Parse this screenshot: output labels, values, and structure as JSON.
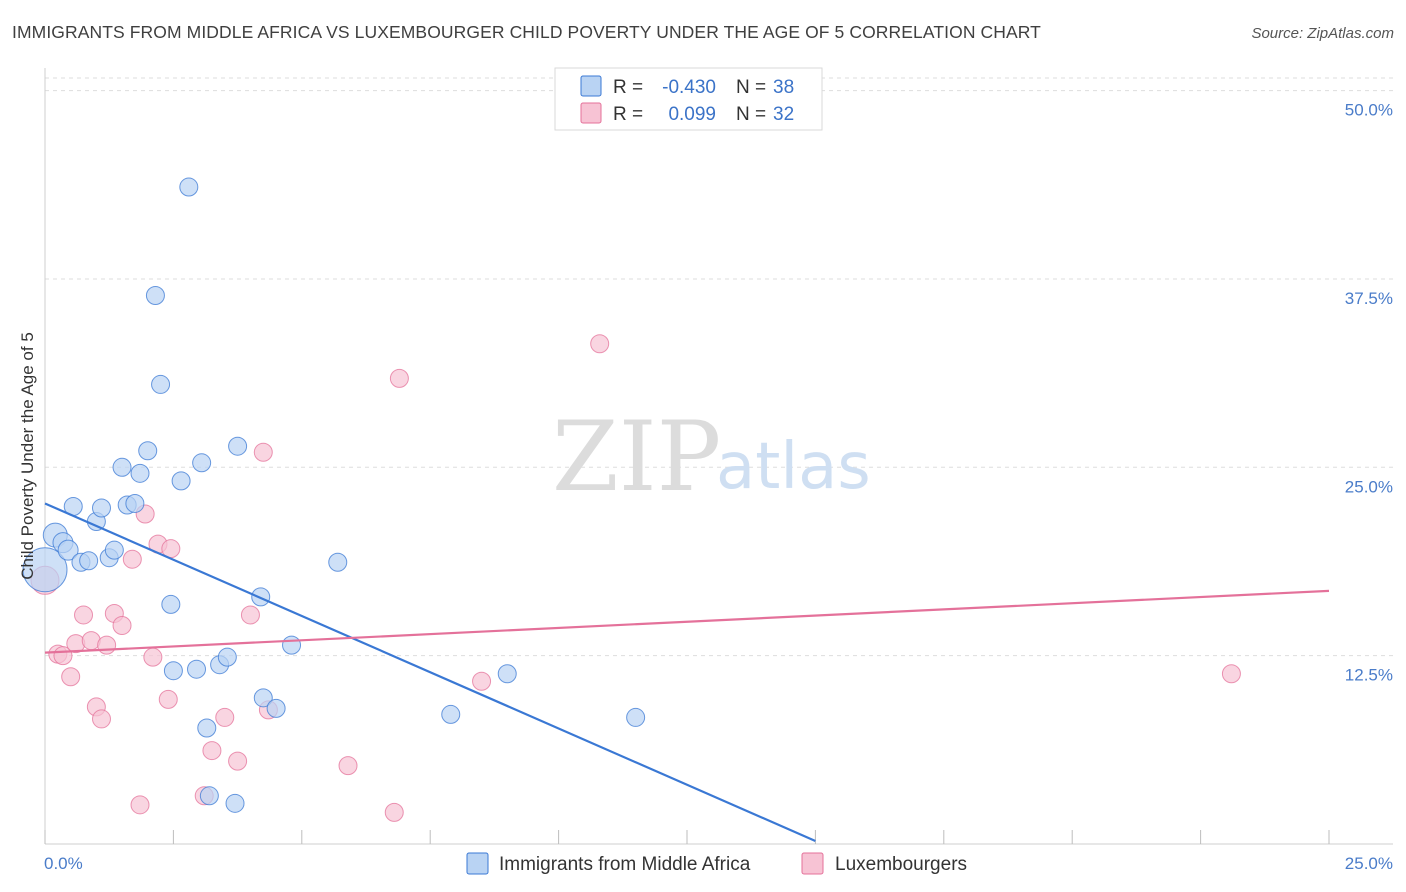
{
  "header": {
    "title": "IMMIGRANTS FROM MIDDLE AFRICA VS LUXEMBOURGER CHILD POVERTY UNDER THE AGE OF 5 CORRELATION CHART",
    "source": "Source: ZipAtlas.com"
  },
  "watermark": {
    "zip": "ZIP",
    "atlas": "atlas"
  },
  "legend_top": {
    "rows": [
      {
        "r_label": "R =",
        "r_value": "-0.430",
        "n_label": "N =",
        "n_value": "38"
      },
      {
        "r_label": "R =",
        "r_value": "0.099",
        "n_label": "N =",
        "n_value": "32"
      }
    ]
  },
  "chart_data": {
    "type": "scatter",
    "title": "IMMIGRANTS FROM MIDDLE AFRICA VS LUXEMBOURGER CHILD POVERTY UNDER THE AGE OF 5 CORRELATION CHART",
    "xlabel": "",
    "ylabel": "Child Poverty Under the Age of 5",
    "xlim": [
      0,
      25
    ],
    "ylim": [
      0,
      51.5
    ],
    "x_tick_labels": [
      "0.0%",
      "25.0%"
    ],
    "y_ticks": [
      12.5,
      25.0,
      37.5,
      50.0
    ],
    "y_tick_labels": [
      "12.5%",
      "25.0%",
      "37.5%",
      "50.0%"
    ],
    "grid": true,
    "colors": {
      "blue": "#3a78d4",
      "blue_fill": "#b9d3f3",
      "pink": "#e4719a",
      "pink_fill": "#f7c3d4"
    },
    "series": [
      {
        "name": "Immigrants from Middle Africa",
        "color": "#3a78d4",
        "r": -0.43,
        "n": 38,
        "points": [
          [
            0.0,
            18.2,
            22
          ],
          [
            0.2,
            20.5,
            12
          ],
          [
            0.35,
            20.0,
            10
          ],
          [
            0.45,
            19.5,
            10
          ],
          [
            0.55,
            22.4,
            9
          ],
          [
            0.7,
            18.7,
            9
          ],
          [
            0.85,
            18.8,
            9
          ],
          [
            1.0,
            21.4,
            9
          ],
          [
            1.1,
            22.3,
            9
          ],
          [
            1.25,
            19.0,
            9
          ],
          [
            1.35,
            19.5,
            9
          ],
          [
            1.5,
            25.0,
            9
          ],
          [
            1.6,
            22.5,
            9
          ],
          [
            1.75,
            22.6,
            9
          ],
          [
            1.85,
            24.6,
            9
          ],
          [
            2.0,
            26.1,
            9
          ],
          [
            2.15,
            36.4,
            9
          ],
          [
            2.25,
            30.5,
            9
          ],
          [
            2.45,
            15.9,
            9
          ],
          [
            2.5,
            11.5,
            9
          ],
          [
            2.65,
            24.1,
            9
          ],
          [
            2.8,
            43.6,
            9
          ],
          [
            2.95,
            11.6,
            9
          ],
          [
            3.05,
            25.3,
            9
          ],
          [
            3.15,
            7.7,
            9
          ],
          [
            3.2,
            3.2,
            9
          ],
          [
            3.4,
            11.9,
            9
          ],
          [
            3.55,
            12.4,
            9
          ],
          [
            3.7,
            2.7,
            9
          ],
          [
            3.75,
            26.4,
            9
          ],
          [
            4.2,
            16.4,
            9
          ],
          [
            4.25,
            9.7,
            9
          ],
          [
            4.5,
            9.0,
            9
          ],
          [
            4.8,
            13.2,
            9
          ],
          [
            5.7,
            18.7,
            9
          ],
          [
            7.9,
            8.6,
            9
          ],
          [
            9.0,
            11.3,
            9
          ],
          [
            11.5,
            8.4,
            9
          ]
        ]
      },
      {
        "name": "Luxembourgers",
        "color": "#e4719a",
        "r": 0.099,
        "n": 32,
        "points": [
          [
            0.0,
            17.5,
            14
          ],
          [
            0.25,
            12.6,
            9
          ],
          [
            0.35,
            12.5,
            9
          ],
          [
            0.5,
            11.1,
            9
          ],
          [
            0.6,
            13.3,
            9
          ],
          [
            0.75,
            15.2,
            9
          ],
          [
            0.9,
            13.5,
            9
          ],
          [
            1.0,
            9.1,
            9
          ],
          [
            1.1,
            8.3,
            9
          ],
          [
            1.2,
            13.2,
            9
          ],
          [
            1.35,
            15.3,
            9
          ],
          [
            1.5,
            14.5,
            9
          ],
          [
            1.7,
            18.9,
            9
          ],
          [
            1.85,
            2.6,
            9
          ],
          [
            1.95,
            21.9,
            9
          ],
          [
            2.1,
            12.4,
            9
          ],
          [
            2.2,
            19.9,
            9
          ],
          [
            2.4,
            9.6,
            9
          ],
          [
            2.45,
            19.6,
            9
          ],
          [
            3.1,
            3.2,
            9
          ],
          [
            3.25,
            6.2,
            9
          ],
          [
            3.5,
            8.4,
            9
          ],
          [
            3.75,
            5.5,
            9
          ],
          [
            4.0,
            15.2,
            9
          ],
          [
            4.25,
            26.0,
            9
          ],
          [
            4.35,
            8.9,
            9
          ],
          [
            5.9,
            5.2,
            9
          ],
          [
            6.8,
            2.1,
            9
          ],
          [
            6.9,
            30.9,
            9
          ],
          [
            8.5,
            10.8,
            9
          ],
          [
            10.8,
            33.2,
            9
          ],
          [
            23.1,
            11.3,
            9
          ]
        ]
      }
    ],
    "trendlines": [
      {
        "series": "Immigrants from Middle Africa",
        "x": [
          0,
          15.0
        ],
        "y": [
          22.6,
          0.2
        ]
      },
      {
        "series": "Luxembourgers",
        "x": [
          0,
          25.0
        ],
        "y": [
          12.7,
          16.8
        ]
      }
    ]
  }
}
